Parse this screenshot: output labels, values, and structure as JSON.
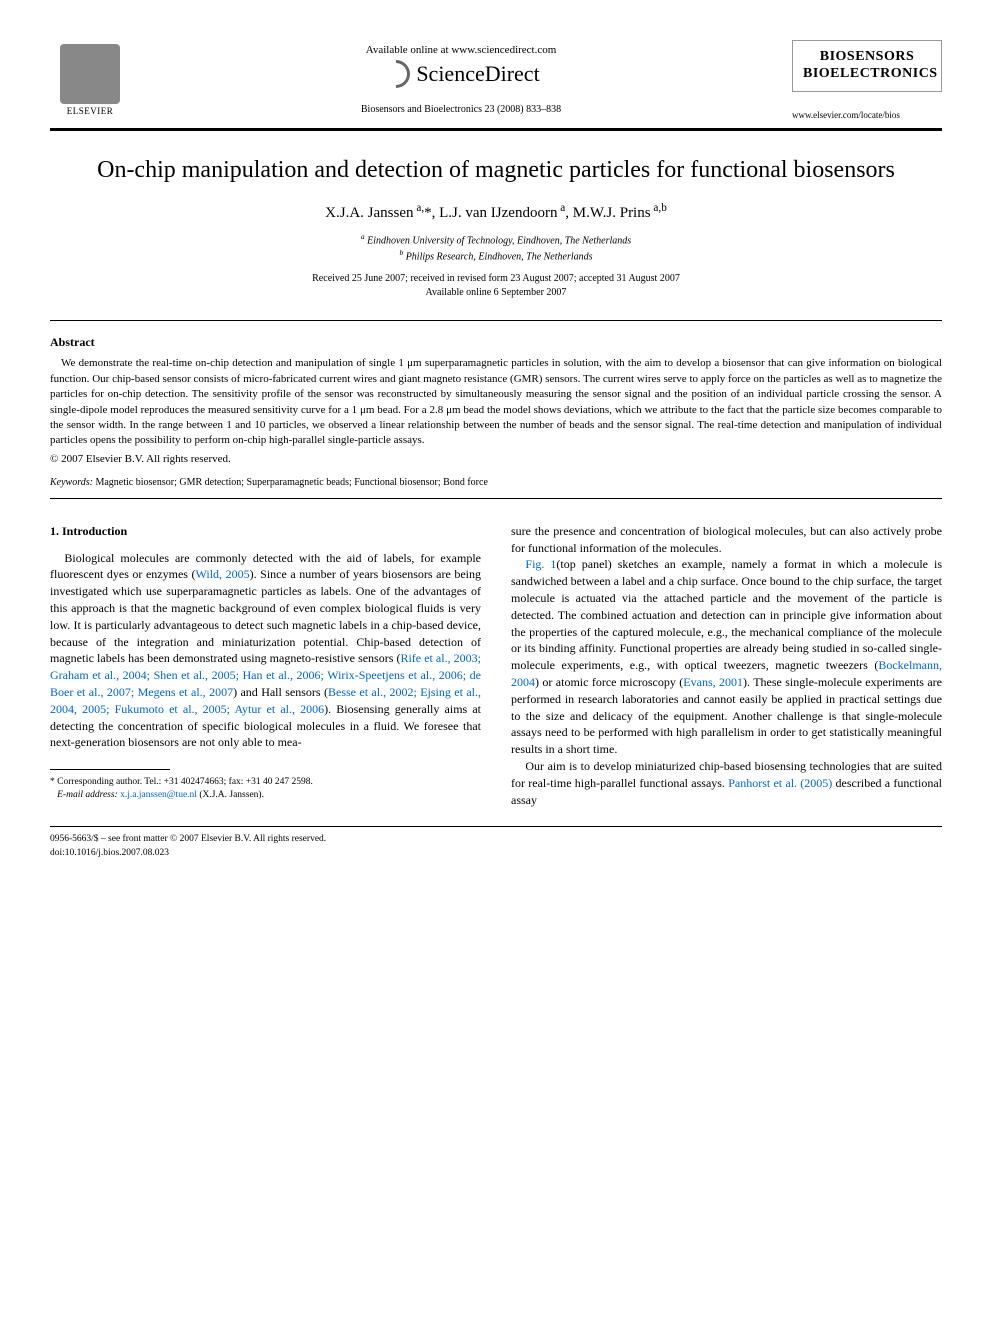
{
  "header": {
    "elsevier_label": "ELSEVIER",
    "available_text": "Available online at www.sciencedirect.com",
    "sd_brand": "ScienceDirect",
    "citation": "Biosensors and Bioelectronics 23 (2008) 833–838",
    "journal_line1": "BIOSENSORS",
    "journal_line2": "BIOELECTRONICS",
    "journal_url": "www.elsevier.com/locate/bios"
  },
  "title": "On-chip manipulation and detection of magnetic particles for functional biosensors",
  "authors_html": "X.J.A. Janssen <sup>a,</sup>*, L.J. van IJzendoorn <sup>a</sup>, M.W.J. Prins <sup>a,b</sup>",
  "affiliations": {
    "a": "Eindhoven University of Technology, Eindhoven, The Netherlands",
    "b": "Philips Research, Eindhoven, The Netherlands"
  },
  "dates": {
    "line1": "Received 25 June 2007; received in revised form 23 August 2007; accepted 31 August 2007",
    "line2": "Available online 6 September 2007"
  },
  "abstract": {
    "heading": "Abstract",
    "body": "We demonstrate the real-time on-chip detection and manipulation of single 1 μm superparamagnetic particles in solution, with the aim to develop a biosensor that can give information on biological function. Our chip-based sensor consists of micro-fabricated current wires and giant magneto resistance (GMR) sensors. The current wires serve to apply force on the particles as well as to magnetize the particles for on-chip detection. The sensitivity profile of the sensor was reconstructed by simultaneously measuring the sensor signal and the position of an individual particle crossing the sensor. A single-dipole model reproduces the measured sensitivity curve for a 1 μm bead. For a 2.8 μm bead the model shows deviations, which we attribute to the fact that the particle size becomes comparable to the sensor width. In the range between 1 and 10 particles, we observed a linear relationship between the number of beads and the sensor signal. The real-time detection and manipulation of individual particles opens the possibility to perform on-chip high-parallel single-particle assays.",
    "copyright": "© 2007 Elsevier B.V. All rights reserved."
  },
  "keywords": {
    "label": "Keywords:",
    "value": "Magnetic biosensor; GMR detection; Superparamagnetic beads; Functional biosensor; Bond force"
  },
  "section1": {
    "heading": "1. Introduction",
    "col_left": {
      "p1_pre": "Biological molecules are commonly detected with the aid of labels, for example fluorescent dyes or enzymes (",
      "p1_ref1": "Wild, 2005",
      "p1_mid1": "). Since a number of years biosensors are being investigated which use superparamagnetic particles as labels. One of the advantages of this approach is that the magnetic background of even complex biological fluids is very low. It is particularly advantageous to detect such magnetic labels in a chip-based device, because of the integration and miniaturization potential. Chip-based detection of magnetic labels has been demonstrated using magneto-resistive sensors (",
      "p1_ref2": "Rife et al., 2003; Graham et al., 2004; Shen et al., 2005; Han et al., 2006; Wirix-Speetjens et al., 2006; de Boer et al., 2007; Megens et al., 2007",
      "p1_mid2": ") and Hall sensors (",
      "p1_ref3": "Besse et al., 2002; Ejsing et al., 2004, 2005; Fukumoto et al., 2005; Aytur et al., 2006",
      "p1_post": "). Biosensing generally aims at detecting the concentration of specific biological molecules in a fluid. We foresee that next-generation biosensors are not only able to mea-"
    },
    "col_right": {
      "p0": "sure the presence and concentration of biological molecules, but can also actively probe for functional information of the molecules.",
      "p1_pre": "",
      "p1_ref1": "Fig. 1",
      "p1_mid1": "(top panel) sketches an example, namely a format in which a molecule is sandwiched between a label and a chip surface. Once bound to the chip surface, the target molecule is actuated via the attached particle and the movement of the particle is detected. The combined actuation and detection can in principle give information about the properties of the captured molecule, e.g., the mechanical compliance of the molecule or its binding affinity. Functional properties are already being studied in so-called single-molecule experiments, e.g., with optical tweezers, magnetic tweezers (",
      "p1_ref2": "Bockelmann, 2004",
      "p1_mid2": ") or atomic force microscopy (",
      "p1_ref3": "Evans, 2001",
      "p1_post": "). These single-molecule experiments are performed in research laboratories and cannot easily be applied in practical settings due to the size and delicacy of the equipment. Another challenge is that single-molecule assays need to be performed with high parallelism in order to get statistically meaningful results in a short time.",
      "p2_pre": "Our aim is to develop miniaturized chip-based biosensing technologies that are suited for real-time high-parallel functional assays. ",
      "p2_ref1": "Panhorst et al. (2005)",
      "p2_post": " described a functional assay"
    }
  },
  "footnote": {
    "corr": "* Corresponding author. Tel.: +31 402474663; fax: +31 40 247 2598.",
    "email_label": "E-mail address:",
    "email": "x.j.a.janssen@tue.nl",
    "email_who": "(X.J.A. Janssen)."
  },
  "bottom": {
    "issn": "0956-5663/$ – see front matter © 2007 Elsevier B.V. All rights reserved.",
    "doi": "doi:10.1016/j.bios.2007.08.023"
  },
  "colors": {
    "link": "#0066cc",
    "text": "#000000",
    "rule": "#000000"
  }
}
